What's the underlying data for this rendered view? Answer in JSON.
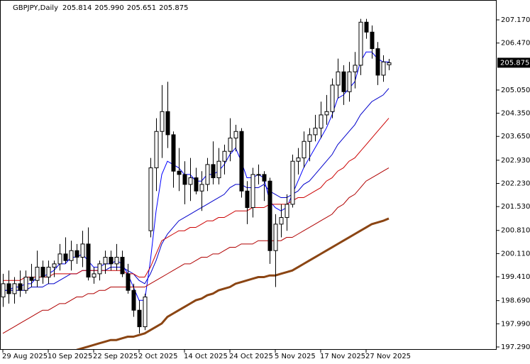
{
  "chart_data": {
    "type": "candlestick",
    "symbol": "GBPJPY,Daily",
    "header_values": [
      "205.814",
      "205.990",
      "205.651",
      "205.875"
    ],
    "price_tag": {
      "value": 205.875,
      "label": "205.875"
    },
    "categories": [
      "29 Aug 2025",
      null,
      null,
      null,
      null,
      null,
      null,
      null,
      "10 Sep 2025",
      null,
      null,
      null,
      null,
      null,
      null,
      null,
      "22 Sep 2025",
      null,
      null,
      null,
      null,
      null,
      null,
      null,
      "2 Oct 2025",
      null,
      null,
      null,
      null,
      null,
      null,
      null,
      "14 Oct 2025",
      null,
      null,
      null,
      null,
      null,
      null,
      null,
      "24 Oct 2025",
      null,
      null,
      null,
      null,
      null,
      null,
      null,
      "5 Nov 2025",
      null,
      null,
      null,
      null,
      null,
      null,
      null,
      "17 Nov 2025",
      null,
      null,
      null,
      null,
      null,
      null,
      null,
      "27 Nov 2025",
      null,
      null,
      null,
      null
    ],
    "open": [
      198.8,
      199.2,
      198.9,
      199.2,
      199.0,
      199.4,
      199.3,
      199.7,
      199.4,
      199.7,
      199.8,
      200.1,
      199.9,
      200.2,
      200.0,
      200.4,
      199.4,
      199.5,
      199.8,
      200.0,
      199.8,
      200.0,
      199.5,
      199.0,
      198.4,
      197.9,
      200.8,
      202.7,
      203.8,
      204.4,
      203.7,
      202.6,
      202.5,
      202.2,
      202.4,
      202.0,
      202.2,
      202.8,
      202.4,
      202.9,
      203.2,
      203.6,
      203.8,
      202.0,
      201.5,
      202.5,
      202.5,
      202.3,
      200.2,
      201.0,
      201.2,
      201.6,
      202.9,
      203.0,
      203.5,
      203.7,
      203.9,
      204.3,
      204.4,
      205.2,
      205.6,
      205.0,
      205.6,
      205.8,
      207.1,
      206.8,
      206.3,
      205.5,
      205.814
    ],
    "high": [
      199.5,
      199.6,
      199.4,
      199.6,
      199.6,
      199.8,
      200.2,
      199.9,
      199.9,
      199.9,
      200.4,
      200.6,
      200.5,
      200.4,
      200.8,
      200.9,
      199.7,
      199.9,
      200.2,
      200.2,
      200.4,
      200.2,
      199.8,
      199.2,
      198.7,
      198.9,
      203.0,
      204.2,
      205.2,
      205.3,
      203.8,
      203.3,
      202.9,
      203.0,
      202.7,
      202.6,
      203.0,
      203.5,
      203.3,
      203.4,
      204.2,
      204.0,
      203.9,
      202.3,
      202.7,
      202.8,
      202.6,
      202.4,
      201.3,
      201.6,
      201.9,
      203.1,
      203.3,
      203.8,
      203.9,
      204.3,
      204.7,
      204.9,
      205.4,
      206.0,
      205.8,
      205.9,
      206.2,
      207.2,
      207.2,
      207.0,
      206.5,
      206.1,
      205.99
    ],
    "low": [
      198.5,
      198.6,
      198.6,
      198.8,
      198.9,
      199.1,
      199.1,
      199.2,
      199.2,
      199.4,
      199.6,
      199.8,
      199.6,
      199.8,
      199.7,
      199.3,
      199.2,
      199.3,
      199.5,
      199.6,
      199.6,
      199.4,
      198.9,
      198.2,
      197.7,
      197.8,
      200.6,
      202.0,
      203.0,
      203.3,
      202.1,
      202.0,
      201.6,
      201.7,
      201.9,
      201.4,
      202.0,
      202.2,
      202.2,
      202.5,
      202.9,
      203.2,
      201.8,
      201.0,
      201.2,
      202.2,
      201.7,
      199.8,
      199.1,
      200.6,
      200.8,
      201.5,
      202.5,
      202.7,
      202.9,
      203.5,
      203.6,
      204.0,
      204.2,
      204.8,
      204.6,
      204.7,
      205.1,
      205.5,
      206.6,
      206.0,
      205.2,
      205.3,
      205.651
    ],
    "close": [
      199.2,
      198.9,
      199.2,
      199.0,
      199.4,
      199.3,
      199.7,
      199.4,
      199.7,
      199.8,
      200.1,
      199.9,
      200.2,
      200.0,
      200.4,
      199.4,
      199.5,
      199.8,
      200.0,
      199.8,
      200.0,
      199.5,
      199.0,
      198.4,
      197.9,
      198.8,
      202.7,
      203.8,
      204.4,
      203.7,
      202.6,
      202.5,
      202.2,
      202.4,
      202.0,
      202.2,
      202.8,
      202.4,
      202.9,
      203.2,
      203.6,
      203.8,
      202.0,
      201.5,
      202.5,
      202.5,
      202.3,
      200.2,
      201.0,
      201.2,
      201.6,
      202.9,
      203.0,
      203.5,
      203.7,
      203.9,
      204.3,
      204.4,
      205.2,
      205.6,
      205.0,
      205.6,
      205.8,
      207.1,
      206.8,
      206.3,
      205.5,
      205.9,
      205.875
    ],
    "overlays": [
      {
        "color": "#0000ff",
        "values": [
          199.0,
          199.0,
          199.1,
          199.1,
          199.2,
          199.2,
          199.4,
          199.4,
          199.5,
          199.6,
          199.8,
          199.8,
          200.0,
          200.0,
          200.1,
          199.9,
          199.7,
          199.7,
          199.8,
          199.8,
          199.9,
          199.8,
          199.5,
          199.1,
          198.7,
          198.7,
          199.9,
          201.4,
          202.5,
          202.9,
          202.8,
          202.7,
          202.5,
          202.5,
          202.3,
          202.3,
          202.5,
          202.5,
          202.6,
          202.8,
          203.1,
          203.3,
          202.9,
          202.4,
          202.4,
          202.5,
          202.4,
          201.7,
          201.5,
          201.4,
          201.5,
          201.9,
          202.3,
          202.7,
          203.0,
          203.3,
          203.6,
          203.9,
          204.3,
          204.8,
          204.9,
          205.1,
          205.3,
          205.9,
          206.2,
          206.2,
          206.0,
          205.9,
          205.9
        ]
      },
      {
        "color": "#0000cc",
        "values": [
          199.0,
          199.0,
          199.0,
          199.0,
          199.0,
          199.1,
          199.1,
          199.1,
          199.2,
          199.2,
          199.3,
          199.4,
          199.5,
          199.5,
          199.6,
          199.6,
          199.6,
          199.6,
          199.6,
          199.7,
          199.7,
          199.7,
          199.6,
          199.5,
          199.3,
          199.2,
          199.5,
          199.9,
          200.4,
          200.7,
          200.9,
          201.1,
          201.2,
          201.3,
          201.4,
          201.5,
          201.6,
          201.7,
          201.8,
          201.9,
          202.1,
          202.2,
          202.2,
          202.1,
          202.1,
          202.1,
          202.2,
          202.0,
          201.9,
          201.8,
          201.8,
          201.9,
          202.0,
          202.2,
          202.3,
          202.5,
          202.7,
          202.9,
          203.1,
          203.4,
          203.6,
          203.8,
          204.0,
          204.3,
          204.5,
          204.7,
          204.8,
          204.9,
          205.1
        ]
      },
      {
        "color": "#cc0000",
        "values": [
          199.3,
          199.3,
          199.3,
          199.3,
          199.4,
          199.4,
          199.4,
          199.4,
          199.4,
          199.5,
          199.5,
          199.5,
          199.5,
          199.5,
          199.6,
          199.6,
          199.6,
          199.6,
          199.6,
          199.6,
          199.6,
          199.6,
          199.5,
          199.5,
          199.4,
          199.4,
          199.7,
          200.1,
          200.5,
          200.6,
          200.7,
          200.8,
          200.8,
          200.9,
          200.9,
          201.0,
          201.1,
          201.1,
          201.2,
          201.2,
          201.3,
          201.4,
          201.4,
          201.4,
          201.5,
          201.5,
          201.5,
          201.6,
          201.6,
          201.6,
          201.6,
          201.7,
          201.8,
          201.8,
          201.9,
          202.0,
          202.1,
          202.3,
          202.4,
          202.6,
          202.7,
          202.9,
          203.0,
          203.2,
          203.4,
          203.6,
          203.8,
          204.0,
          204.2
        ]
      },
      {
        "color": "#b00000",
        "values": [
          197.7,
          197.8,
          197.9,
          198.0,
          198.1,
          198.2,
          198.3,
          198.4,
          198.4,
          198.5,
          198.6,
          198.6,
          198.7,
          198.8,
          198.8,
          198.9,
          198.9,
          199.0,
          199.0,
          199.1,
          199.1,
          199.1,
          199.1,
          199.1,
          199.1,
          199.1,
          199.2,
          199.3,
          199.4,
          199.5,
          199.6,
          199.7,
          199.8,
          199.8,
          199.9,
          200.0,
          200.0,
          200.1,
          200.1,
          200.2,
          200.3,
          200.3,
          200.4,
          200.4,
          200.4,
          200.5,
          200.5,
          200.5,
          200.5,
          200.5,
          200.6,
          200.6,
          200.7,
          200.8,
          200.9,
          201.0,
          201.1,
          201.2,
          201.3,
          201.5,
          201.6,
          201.8,
          201.9,
          202.1,
          202.3,
          202.4,
          202.5,
          202.6,
          202.7
        ]
      },
      {
        "color": "#8b4513",
        "width": 3,
        "values": [
          null,
          null,
          null,
          null,
          null,
          null,
          null,
          null,
          null,
          null,
          null,
          null,
          null,
          197.2,
          197.25,
          197.3,
          197.35,
          197.4,
          197.45,
          197.5,
          197.5,
          197.55,
          197.6,
          197.6,
          197.65,
          197.7,
          197.8,
          197.9,
          198.0,
          198.2,
          198.3,
          198.4,
          198.5,
          198.6,
          198.7,
          198.75,
          198.85,
          198.9,
          199.0,
          199.05,
          199.1,
          199.2,
          199.25,
          199.3,
          199.35,
          199.4,
          199.4,
          199.45,
          199.45,
          199.5,
          199.55,
          199.6,
          199.7,
          199.8,
          199.9,
          200.0,
          200.1,
          200.2,
          200.3,
          200.4,
          200.5,
          200.6,
          200.7,
          200.8,
          200.9,
          201.0,
          201.05,
          201.1,
          201.17
        ]
      }
    ],
    "up_color": "#ffffff",
    "down_color": "#000000",
    "ylim": [
      197.204,
      207.77
    ],
    "yticks": [
      {
        "value": 207.17,
        "label": "207.170"
      },
      {
        "value": 206.47,
        "label": "206.470"
      },
      {
        "value": 205.05,
        "label": "205.050"
      },
      {
        "value": 204.35,
        "label": "204.350"
      },
      {
        "value": 203.65,
        "label": "203.650"
      },
      {
        "value": 202.93,
        "label": "202.930"
      },
      {
        "value": 202.23,
        "label": "202.230"
      },
      {
        "value": 201.53,
        "label": "201.530"
      },
      {
        "value": 200.81,
        "label": "200.810"
      },
      {
        "value": 200.11,
        "label": "200.110"
      },
      {
        "value": 199.41,
        "label": "199.410"
      },
      {
        "value": 198.69,
        "label": "198.690"
      },
      {
        "value": 197.99,
        "label": "197.990"
      },
      {
        "value": 197.29,
        "label": "197.290"
      }
    ]
  }
}
